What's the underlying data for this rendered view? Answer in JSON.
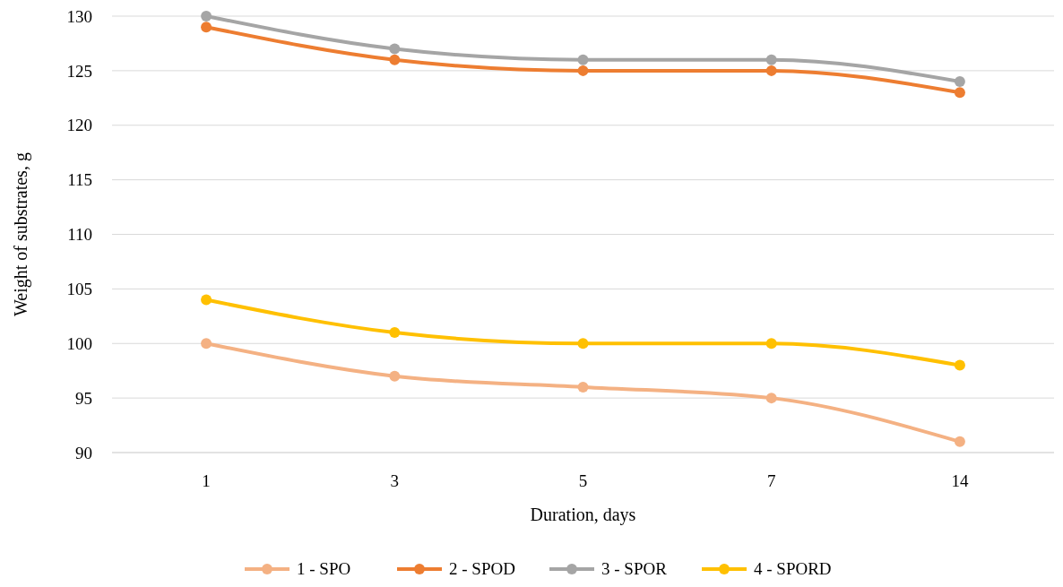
{
  "chart_data": {
    "type": "line",
    "xlabel": "Duration, days",
    "ylabel": "Weight of substrates, g",
    "categories": [
      "1",
      "3",
      "5",
      "7",
      "14"
    ],
    "series": [
      {
        "name": "1 - SPO",
        "color": "#f4b183",
        "values": [
          100,
          97,
          96,
          95,
          91
        ]
      },
      {
        "name": "2 - SPOD",
        "color": "#ed7d31",
        "values": [
          129,
          126,
          125,
          125,
          123
        ]
      },
      {
        "name": "3 - SPOR",
        "color": "#a5a5a5",
        "values": [
          130,
          127,
          126,
          126,
          124
        ]
      },
      {
        "name": "4 - SPORD",
        "color": "#ffc000",
        "values": [
          104,
          101,
          100,
          100,
          98
        ]
      }
    ],
    "ylim": [
      90,
      130
    ],
    "yticks": [
      90,
      95,
      100,
      105,
      110,
      115,
      120,
      125,
      130
    ],
    "grid": "y",
    "legend": "bottom",
    "marker": "circle",
    "line_style": "solid"
  }
}
